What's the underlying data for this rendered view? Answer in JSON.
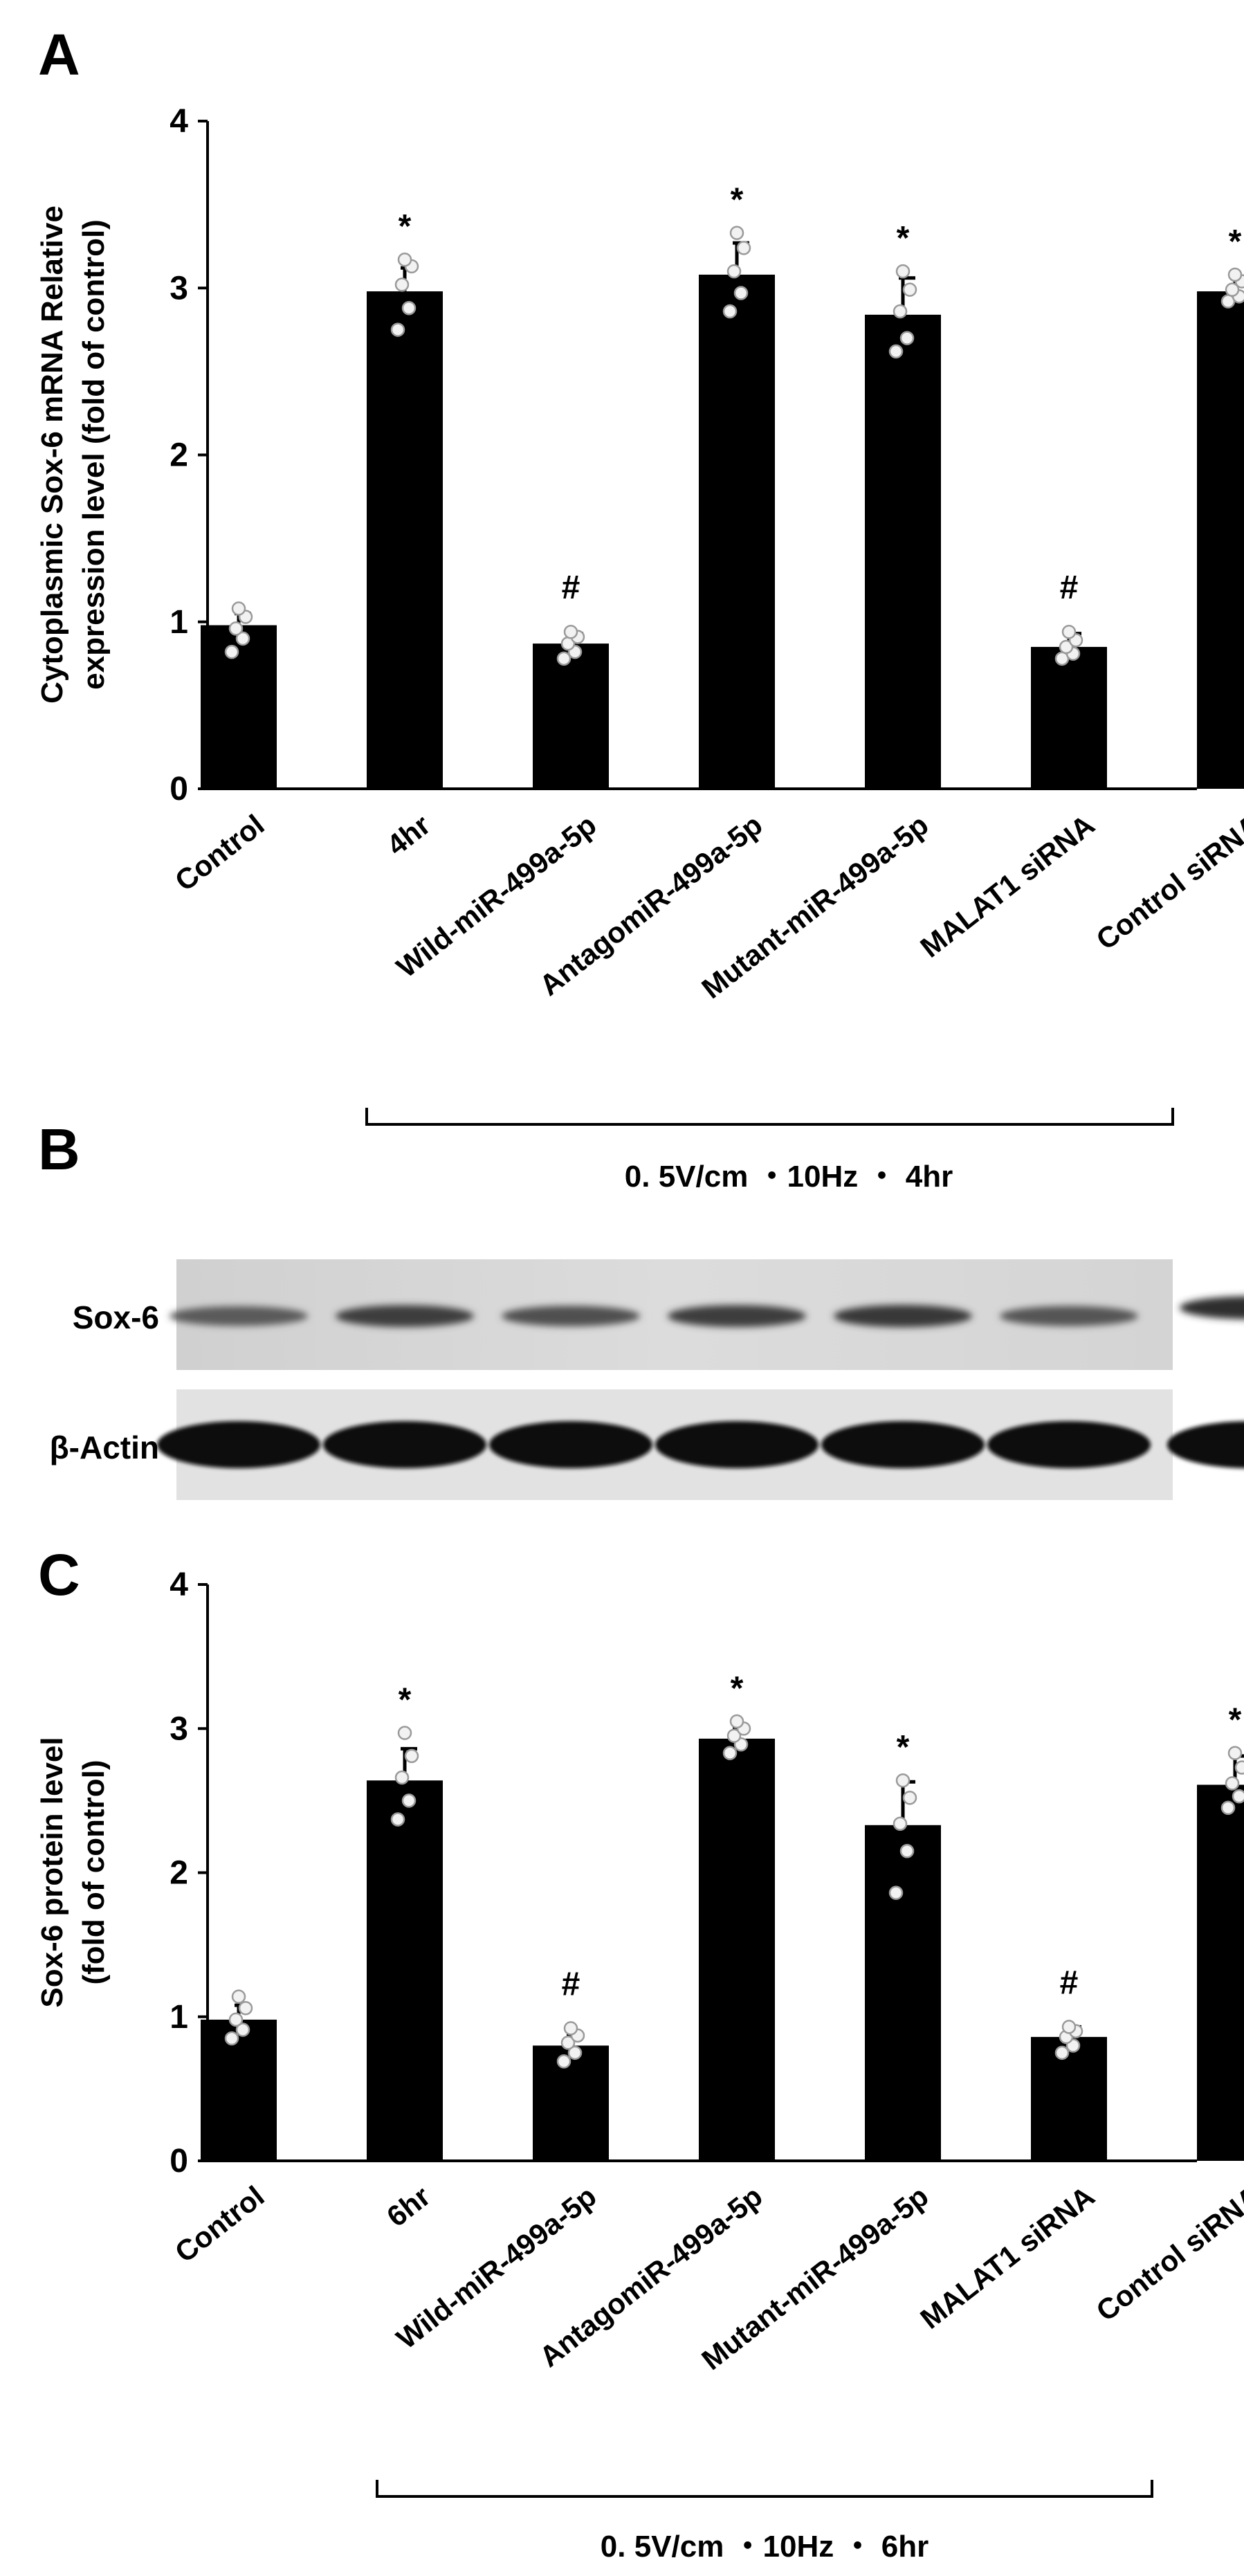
{
  "panels": {
    "a": "A",
    "b": "B",
    "c": "C"
  },
  "chart_data": [
    {
      "type": "bar",
      "panel": "A",
      "ylabel_line1": "Cytoplasmic Sox-6 mRNA Relative",
      "ylabel_line2": "expression level    (fold of control)",
      "ylim": [
        0,
        4
      ],
      "yticks": [
        "0",
        "1",
        "2",
        "3",
        "4"
      ],
      "categories": [
        "Control",
        "4hr",
        "Wild-miR-499a-5p",
        "AntagomiR-499a-5p",
        "Mutant-miR-499a-5p",
        "MALAT1  siRNA",
        "Control siRNA"
      ],
      "values": [
        0.98,
        2.98,
        0.87,
        3.08,
        2.84,
        0.85,
        2.98
      ],
      "errors": [
        0.07,
        0.14,
        0.06,
        0.19,
        0.22,
        0.08,
        0.09
      ],
      "significance": [
        "",
        "*",
        "#",
        "*",
        "*",
        "#",
        "*"
      ],
      "points": [
        [
          0.82,
          0.9,
          0.96,
          1.03,
          1.08
        ],
        [
          2.75,
          2.88,
          3.02,
          3.13,
          3.17
        ],
        [
          0.78,
          0.82,
          0.87,
          0.91,
          0.94
        ],
        [
          2.86,
          2.97,
          3.1,
          3.24,
          3.33
        ],
        [
          2.62,
          2.7,
          2.86,
          2.99,
          3.1
        ],
        [
          0.78,
          0.81,
          0.85,
          0.89,
          0.94
        ],
        [
          2.92,
          2.95,
          2.99,
          3.04,
          3.08
        ]
      ],
      "condition": "0. 5V/cm  ・10Hz  ・ 4hr",
      "grid": false
    },
    {
      "type": "bar",
      "panel": "C",
      "ylabel_line1": "Sox-6 protein level",
      "ylabel_line2": "(fold of control)",
      "ylim": [
        0,
        4
      ],
      "yticks": [
        "0",
        "1",
        "2",
        "3",
        "4"
      ],
      "categories": [
        "Control",
        "6hr",
        "Wild-miR-499a-5p",
        "AntagomiR-499a-5p",
        "Mutant-miR-499a-5p",
        "MALAT1  siRNA",
        "Control siRNA"
      ],
      "values": [
        0.98,
        2.64,
        0.8,
        2.93,
        2.33,
        0.86,
        2.61
      ],
      "errors": [
        0.1,
        0.22,
        0.08,
        0.08,
        0.3,
        0.07,
        0.2
      ],
      "significance": [
        "",
        "*",
        "#",
        "*",
        "*",
        "#",
        "*"
      ],
      "points": [
        [
          0.85,
          0.91,
          0.98,
          1.06,
          1.14
        ],
        [
          2.37,
          2.5,
          2.66,
          2.81,
          2.97
        ],
        [
          0.69,
          0.75,
          0.82,
          0.87,
          0.92
        ],
        [
          2.83,
          2.89,
          2.95,
          3.0,
          3.05
        ],
        [
          1.86,
          2.15,
          2.34,
          2.52,
          2.64
        ],
        [
          0.75,
          0.8,
          0.86,
          0.9,
          0.93
        ],
        [
          2.45,
          2.53,
          2.62,
          2.73,
          2.83
        ]
      ],
      "condition": "0. 5V/cm  ・10Hz  ・ 6hr",
      "grid": false
    }
  ],
  "blot": {
    "band_labels": [
      "Sox-6",
      "β-Actin"
    ],
    "sox6_intensity": [
      0.55,
      0.8,
      0.65,
      0.82,
      0.85,
      0.6,
      0.95
    ],
    "actin_intensity": [
      1,
      1,
      1,
      1,
      1,
      1,
      1
    ]
  }
}
